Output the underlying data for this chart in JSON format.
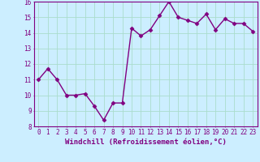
{
  "x": [
    0,
    1,
    2,
    3,
    4,
    5,
    6,
    7,
    8,
    9,
    10,
    11,
    12,
    13,
    14,
    15,
    16,
    17,
    18,
    19,
    20,
    21,
    22,
    23
  ],
  "y": [
    11.0,
    11.7,
    11.0,
    10.0,
    10.0,
    10.1,
    9.3,
    8.4,
    9.5,
    9.5,
    14.3,
    13.8,
    14.2,
    15.1,
    16.0,
    15.0,
    14.8,
    14.6,
    15.2,
    14.2,
    14.9,
    14.6,
    14.6,
    14.1
  ],
  "line_color": "#800080",
  "marker": "D",
  "marker_size": 2.5,
  "bg_color": "#cceeff",
  "grid_color": "#aaddcc",
  "xlabel": "Windchill (Refroidissement éolien,°C)",
  "ylabel": "",
  "ylim": [
    8,
    16
  ],
  "xlim": [
    -0.5,
    23.5
  ],
  "yticks": [
    8,
    9,
    10,
    11,
    12,
    13,
    14,
    15,
    16
  ],
  "xticks": [
    0,
    1,
    2,
    3,
    4,
    5,
    6,
    7,
    8,
    9,
    10,
    11,
    12,
    13,
    14,
    15,
    16,
    17,
    18,
    19,
    20,
    21,
    22,
    23
  ],
  "tick_color": "#800080",
  "label_color": "#800080",
  "axis_color": "#800080",
  "font_size": 5.5,
  "xlabel_fontsize": 6.5,
  "line_width": 1.0
}
